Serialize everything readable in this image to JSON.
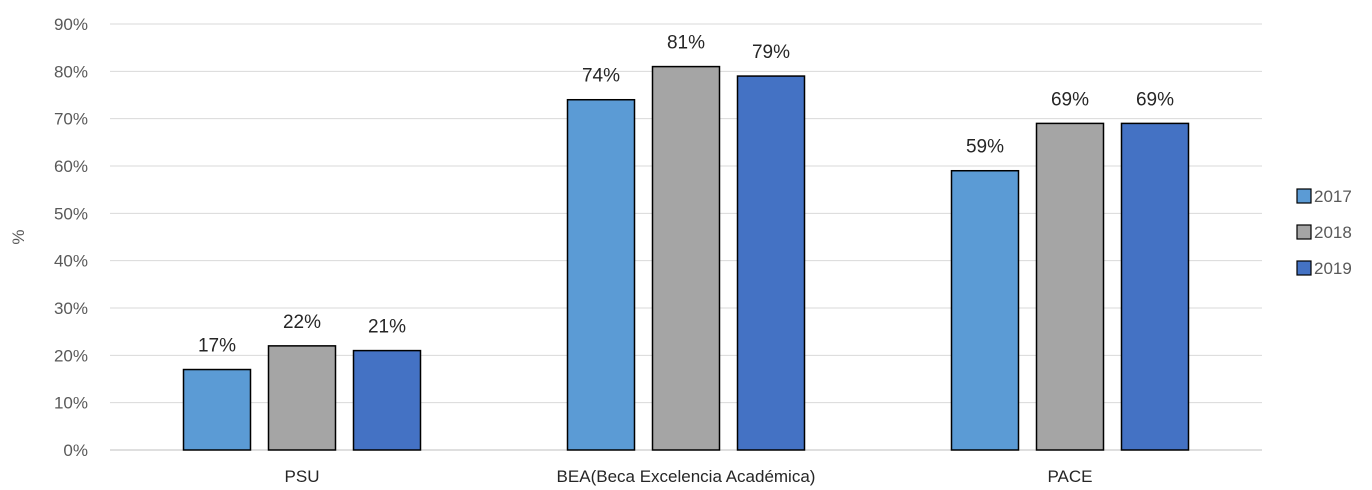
{
  "chart_data": {
    "type": "bar",
    "title": "",
    "xlabel": "",
    "ylabel": "%",
    "ylim": [
      0,
      90
    ],
    "y_ticks": [
      "0%",
      "10%",
      "20%",
      "30%",
      "40%",
      "50%",
      "60%",
      "70%",
      "80%",
      "90%"
    ],
    "y_tick_values": [
      0,
      10,
      20,
      30,
      40,
      50,
      60,
      70,
      80,
      90
    ],
    "grid": true,
    "legend_position": "right",
    "categories": [
      "PSU",
      "BEA(Beca Excelencia Académica)",
      "PACE"
    ],
    "series": [
      {
        "name": "2017",
        "color": "#5B9BD5",
        "values": [
          17,
          74,
          59
        ],
        "labels": [
          "17%",
          "74%",
          "59%"
        ]
      },
      {
        "name": "2018",
        "color": "#A5A5A5",
        "values": [
          22,
          81,
          69
        ],
        "labels": [
          "22%",
          "81%",
          "69%"
        ]
      },
      {
        "name": "2019",
        "color": "#4472C4",
        "values": [
          21,
          79,
          69
        ],
        "labels": [
          "21%",
          "79%",
          "69%"
        ]
      }
    ]
  }
}
